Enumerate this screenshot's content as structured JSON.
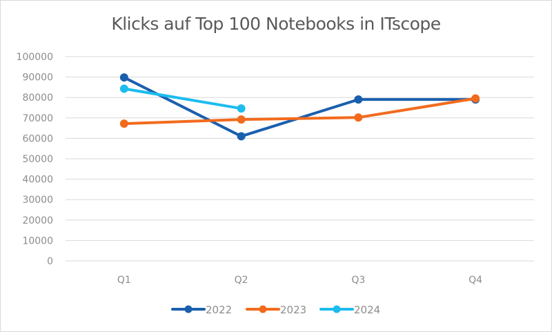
{
  "chart_data": {
    "type": "line",
    "title": "Klicks auf Top 100 Notebooks in ITscope",
    "xlabel": "",
    "ylabel": "",
    "categories": [
      "Q1",
      "Q2",
      "Q3",
      "Q4"
    ],
    "ylim": [
      0,
      100000
    ],
    "yticks": [
      "0",
      "10000",
      "20000",
      "30000",
      "40000",
      "50000",
      "60000",
      "70000",
      "80000",
      "90000",
      "100000"
    ],
    "grid": true,
    "legend_position": "bottom",
    "series": [
      {
        "name": "2022",
        "color": "#1a5fae",
        "values": [
          89800,
          61000,
          79000,
          79000
        ]
      },
      {
        "name": "2023",
        "color": "#f26b1d",
        "values": [
          67200,
          69200,
          70200,
          79500
        ]
      },
      {
        "name": "2024",
        "color": "#1cbcef",
        "values": [
          84300,
          74600,
          null,
          null
        ]
      }
    ]
  }
}
